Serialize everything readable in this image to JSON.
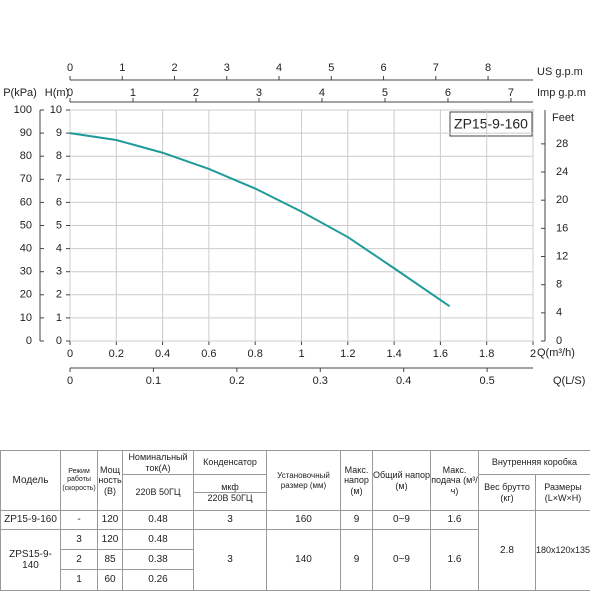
{
  "chart_data": {
    "type": "line",
    "title": "ZP15-9-160",
    "x": [
      0,
      0.2,
      0.4,
      0.6,
      0.8,
      1.0,
      1.2,
      1.4,
      1.64
    ],
    "series": [
      {
        "color": "#1f9a9a",
        "values": [
          9,
          8.7,
          8.15,
          7.45,
          6.6,
          5.6,
          4.5,
          3.15,
          1.5
        ]
      }
    ],
    "xlabel": "Q(m³/h)",
    "xlim": [
      0,
      2
    ],
    "xticks": [
      0,
      0.2,
      0.4,
      0.6,
      0.8,
      1,
      1.2,
      1.4,
      1.6,
      1.8,
      2
    ],
    "ylabel": "H(m)",
    "ylim": [
      0,
      10
    ],
    "yticks": [
      0,
      1,
      2,
      3,
      4,
      5,
      6,
      7,
      8,
      9,
      10
    ],
    "grid": true,
    "extra_axes": [
      {
        "label": "P(kPa)",
        "side": "left",
        "lim": [
          0,
          100
        ],
        "ticks": [
          0,
          10,
          20,
          30,
          40,
          50,
          60,
          70,
          80,
          90,
          100
        ]
      },
      {
        "label": "Feet",
        "side": "right",
        "lim": [
          0,
          32.81
        ],
        "ticks": [
          0,
          4,
          8,
          12,
          16,
          20,
          24,
          28
        ]
      },
      {
        "label": "US g.p.m",
        "side": "top",
        "lim": [
          0,
          8.86
        ],
        "ticks": [
          0,
          1,
          2,
          3,
          4,
          5,
          6,
          7,
          8
        ]
      },
      {
        "label": "Imp g.p.m",
        "side": "top",
        "lim": [
          0,
          7.35
        ],
        "ticks": [
          0,
          1,
          2,
          3,
          4,
          5,
          6,
          7
        ]
      },
      {
        "label": "Q(L/S)",
        "side": "bottom",
        "lim": [
          0,
          0.555
        ],
        "ticks": [
          0,
          0.1,
          0.2,
          0.3,
          0.4,
          0.5
        ]
      }
    ]
  },
  "table": {
    "header": [
      "Модель",
      "Режим работы (скорость)",
      "Мощ ность (В)",
      "Номинальный ток(А)",
      "Конденсатор",
      "Установочный размер (мм)",
      "Макс. напор (м)",
      "Общий напор (м)",
      "Макс. подача (м³/ч)",
      "Внутренняя коробка",
      "220В 50ГЦ",
      "мкф",
      "220В 50ГЦ",
      "Вес брутто (кг)",
      "Размеры (L×W×H)"
    ],
    "rows": [
      [
        "ZP15-9-160",
        "-",
        "120",
        "0.48",
        "3",
        "160",
        "9",
        "0~9",
        "1.6"
      ],
      [
        "ZPS15-9-140",
        "3",
        "120",
        "0.48",
        "3",
        "140",
        "9",
        "0~9",
        "1.6"
      ],
      [
        "2",
        "85",
        "0.38"
      ],
      [
        "1",
        "60",
        "0.26"
      ]
    ],
    "box": {
      "weight": "2.8",
      "size": "180x120x135"
    }
  }
}
